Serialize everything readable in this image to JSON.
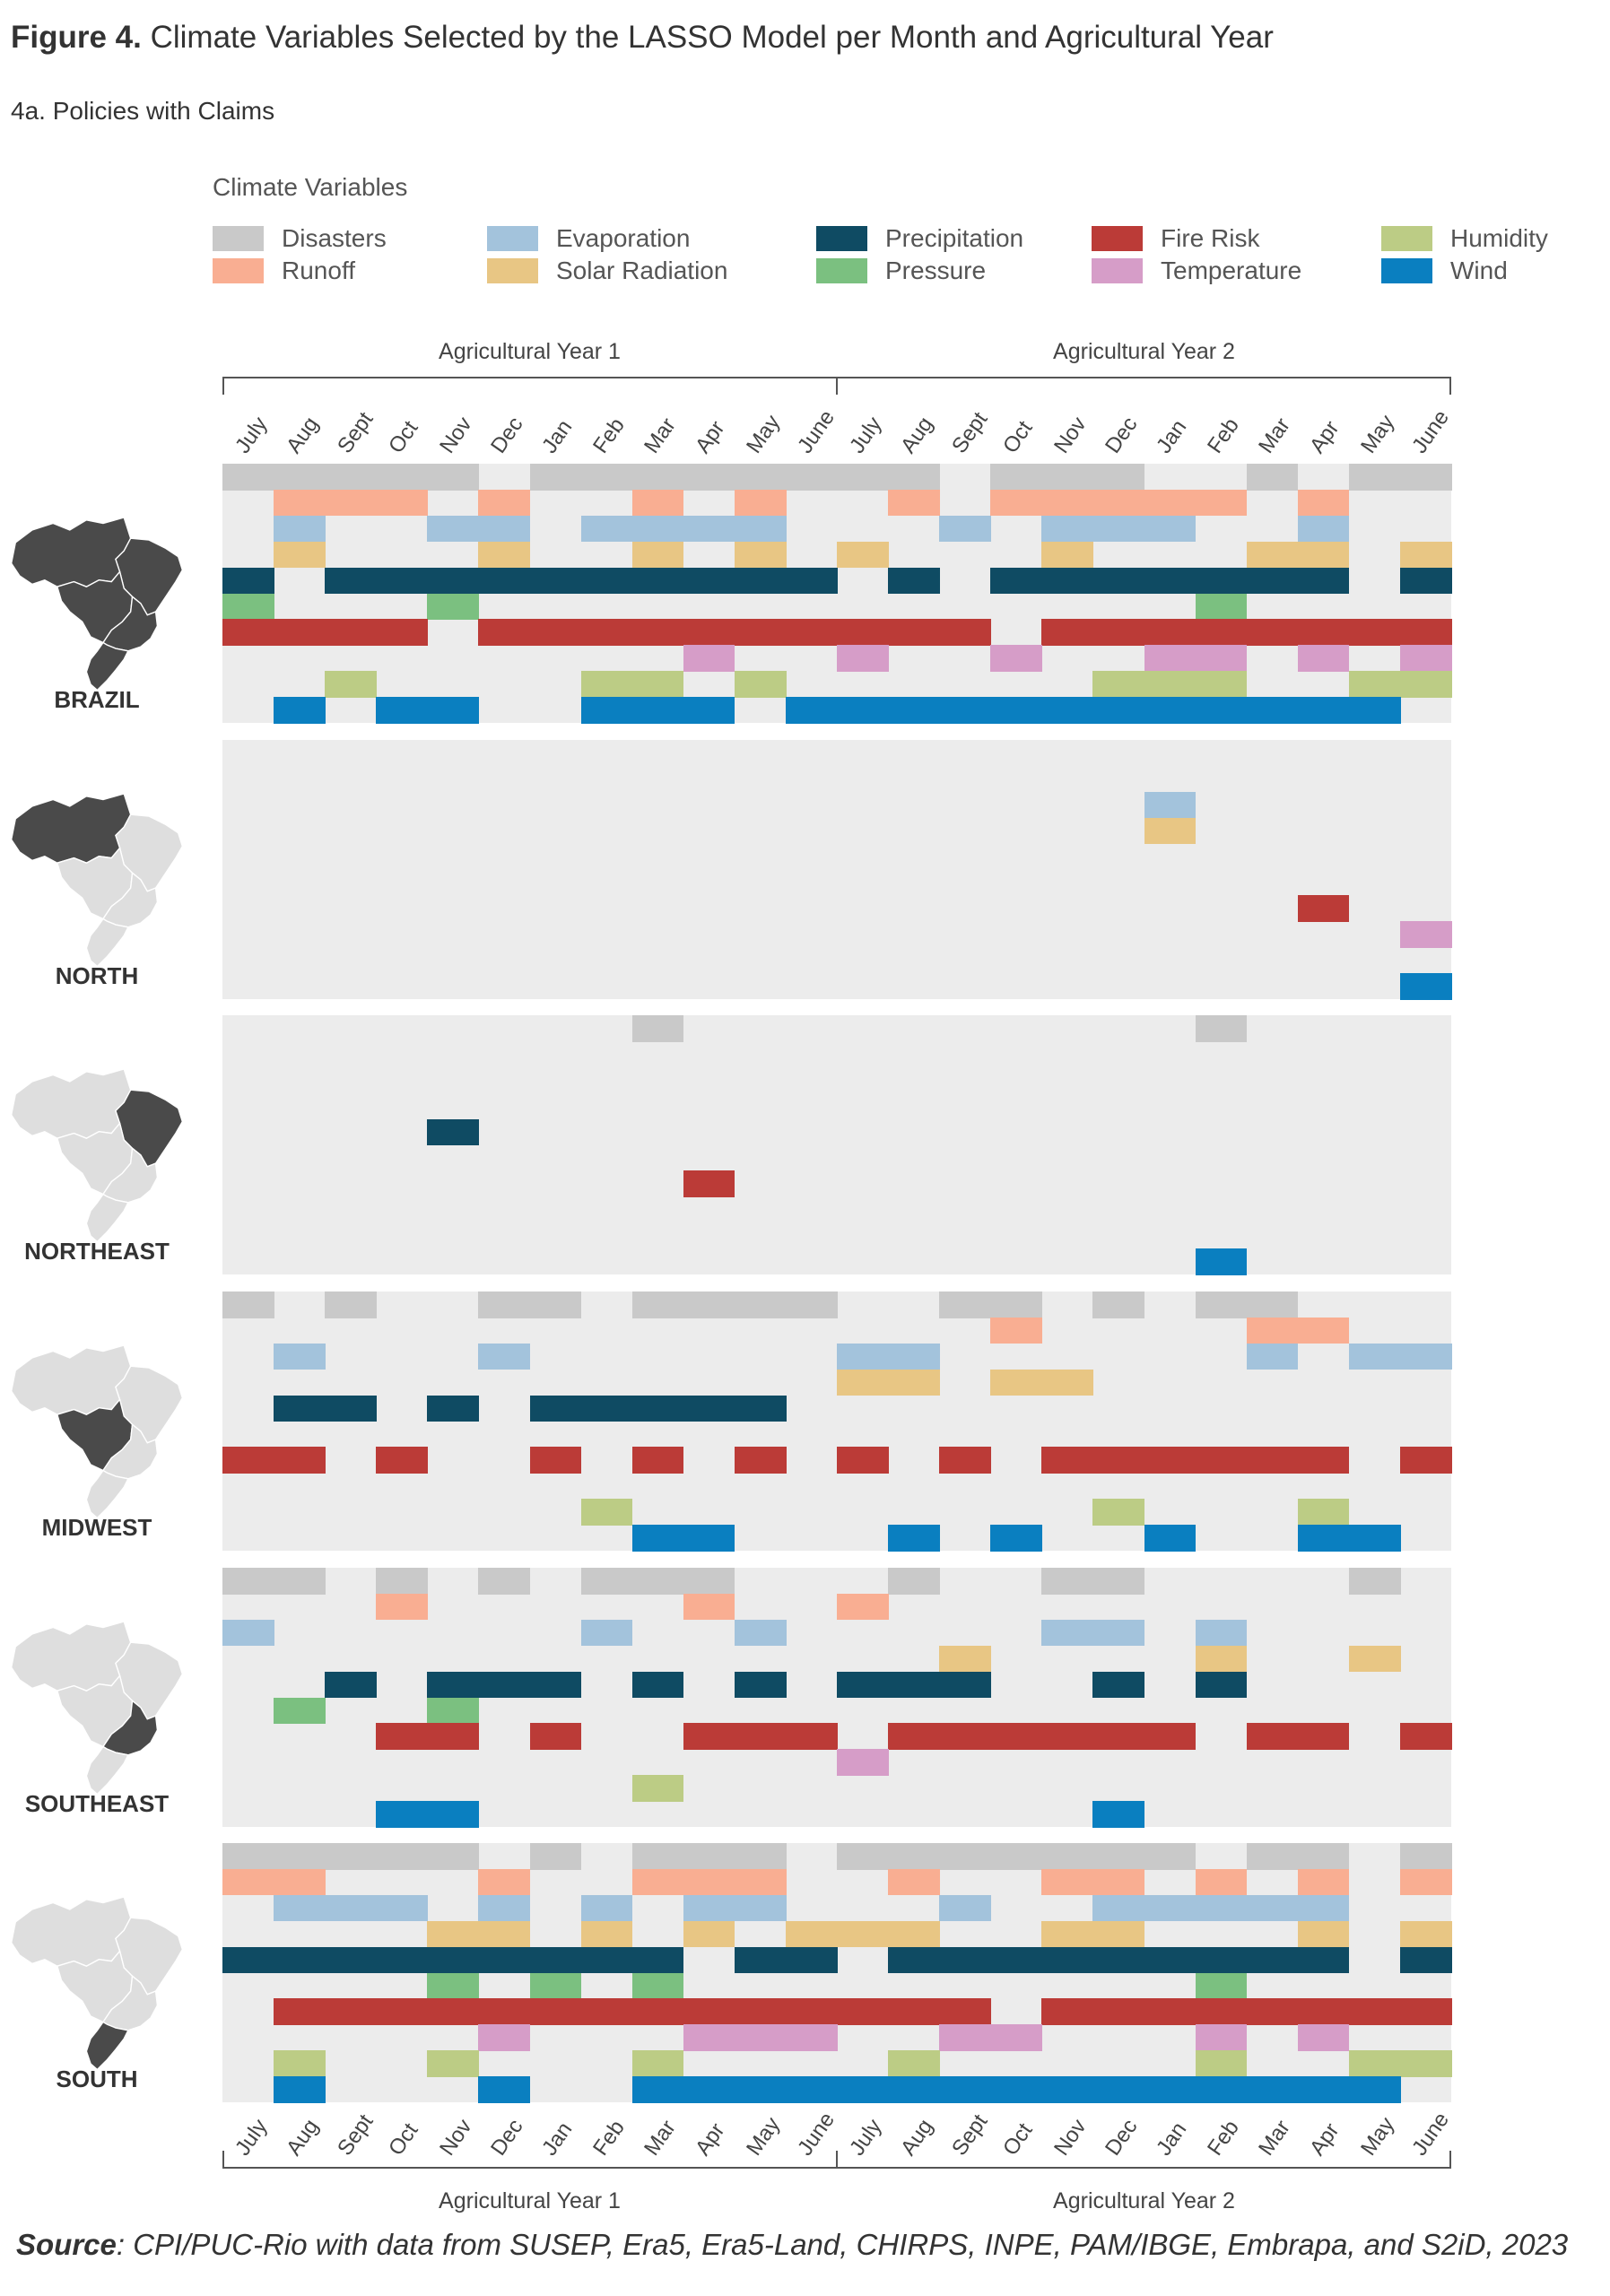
{
  "figure": {
    "label": "Figure 4.",
    "title": "Climate Variables Selected by the LASSO Model per Month and Agricultural Year",
    "subtitle": "4a. Policies with Claims",
    "source_label": "Source",
    "source_text": ": CPI/PUC-Rio with data from SUSEP, Era5, Era5-Land, CHIRPS, INPE, PAM/IBGE, Embrapa, and S2iD, 2023"
  },
  "legend": {
    "title": "Climate Variables",
    "items": [
      {
        "key": "disasters",
        "label": "Disasters",
        "color": "#c9c9c9"
      },
      {
        "key": "runoff",
        "label": "Runoff",
        "color": "#f9ae92"
      },
      {
        "key": "evaporation",
        "label": "Evaporation",
        "color": "#a3c3dc"
      },
      {
        "key": "solar",
        "label": "Solar Radiation",
        "color": "#e8c684"
      },
      {
        "key": "precipitation",
        "label": "Precipitation",
        "color": "#0f4b63"
      },
      {
        "key": "pressure",
        "label": "Pressure",
        "color": "#7bc080"
      },
      {
        "key": "fire",
        "label": "Fire Risk",
        "color": "#bb3b37"
      },
      {
        "key": "temperature",
        "label": "Temperature",
        "color": "#d69dc8"
      },
      {
        "key": "humidity",
        "label": "Humidity",
        "color": "#bccc85"
      },
      {
        "key": "wind",
        "label": "Wind",
        "color": "#0a7fc0"
      }
    ]
  },
  "chart_data": {
    "type": "heatmap",
    "x_groups": [
      "Agricultural Year 1",
      "Agricultural Year 2"
    ],
    "months": [
      "July",
      "Aug",
      "Sept",
      "Oct",
      "Nov",
      "Dec",
      "Jan",
      "Feb",
      "Mar",
      "Apr",
      "May",
      "June",
      "July",
      "Aug",
      "Sept",
      "Oct",
      "Nov",
      "Dec",
      "Jan",
      "Feb",
      "Mar",
      "Apr",
      "May",
      "June"
    ],
    "variables": [
      "disasters",
      "runoff",
      "evaporation",
      "solar",
      "precipitation",
      "pressure",
      "fire",
      "temperature",
      "humidity",
      "wind"
    ],
    "regions": [
      {
        "name": "BRAZIL",
        "map": "brazil",
        "selected": {
          "disasters": [
            0,
            1,
            2,
            3,
            4,
            6,
            7,
            8,
            9,
            10,
            11,
            12,
            13,
            15,
            16,
            17,
            20,
            22,
            23
          ],
          "runoff": [
            1,
            2,
            3,
            5,
            8,
            10,
            13,
            15,
            16,
            17,
            18,
            19,
            21
          ],
          "evaporation": [
            1,
            4,
            5,
            7,
            8,
            9,
            10,
            14,
            16,
            17,
            18,
            21
          ],
          "solar": [
            1,
            5,
            8,
            10,
            12,
            16,
            20,
            21,
            23
          ],
          "precipitation": [
            0,
            2,
            3,
            4,
            5,
            6,
            7,
            8,
            9,
            10,
            11,
            13,
            15,
            16,
            17,
            18,
            19,
            20,
            21,
            23
          ],
          "pressure": [
            0,
            4,
            19
          ],
          "fire": [
            0,
            1,
            2,
            3,
            5,
            6,
            7,
            8,
            9,
            10,
            11,
            12,
            13,
            14,
            16,
            17,
            18,
            19,
            20,
            21,
            22,
            23
          ],
          "temperature": [
            9,
            12,
            15,
            18,
            19,
            21,
            23
          ],
          "humidity": [
            2,
            7,
            8,
            10,
            17,
            18,
            19,
            22,
            23
          ],
          "wind": [
            1,
            3,
            4,
            7,
            8,
            9,
            11,
            12,
            13,
            14,
            15,
            16,
            17,
            18,
            19,
            20,
            21,
            22
          ]
        }
      },
      {
        "name": "NORTH",
        "map": "north",
        "selected": {
          "disasters": [],
          "runoff": [],
          "evaporation": [
            18
          ],
          "solar": [
            18
          ],
          "precipitation": [],
          "pressure": [],
          "fire": [
            21
          ],
          "temperature": [
            23
          ],
          "humidity": [],
          "wind": [
            23
          ]
        }
      },
      {
        "name": "NORTHEAST",
        "map": "northeast",
        "selected": {
          "disasters": [
            8,
            19
          ],
          "runoff": [],
          "evaporation": [],
          "solar": [],
          "precipitation": [
            4
          ],
          "pressure": [],
          "fire": [
            9
          ],
          "temperature": [],
          "humidity": [],
          "wind": [
            19
          ]
        }
      },
      {
        "name": "MIDWEST",
        "map": "midwest",
        "selected": {
          "disasters": [
            0,
            2,
            5,
            6,
            8,
            9,
            10,
            11,
            14,
            15,
            17,
            19,
            20
          ],
          "runoff": [
            15,
            20,
            21
          ],
          "evaporation": [
            1,
            5,
            12,
            13,
            20,
            22,
            23
          ],
          "solar": [
            12,
            13,
            15,
            16
          ],
          "precipitation": [
            1,
            2,
            4,
            6,
            7,
            8,
            9,
            10
          ],
          "pressure": [],
          "fire": [
            0,
            1,
            3,
            6,
            8,
            10,
            12,
            14,
            16,
            17,
            18,
            19,
            20,
            21,
            23
          ],
          "temperature": [],
          "humidity": [
            7,
            17,
            21
          ],
          "wind": [
            8,
            9,
            13,
            15,
            18,
            21,
            22
          ]
        }
      },
      {
        "name": "SOUTHEAST",
        "map": "southeast",
        "selected": {
          "disasters": [
            0,
            1,
            3,
            5,
            7,
            8,
            9,
            13,
            16,
            17,
            22
          ],
          "runoff": [
            3,
            9,
            12
          ],
          "evaporation": [
            0,
            7,
            10,
            16,
            17,
            19
          ],
          "solar": [
            14,
            19,
            22
          ],
          "precipitation": [
            2,
            4,
            5,
            6,
            8,
            10,
            12,
            13,
            14,
            17,
            19
          ],
          "pressure": [
            1,
            4
          ],
          "fire": [
            3,
            4,
            6,
            9,
            10,
            11,
            13,
            14,
            15,
            16,
            17,
            18,
            20,
            21,
            23
          ],
          "temperature": [
            12
          ],
          "humidity": [
            8
          ],
          "wind": [
            3,
            4,
            17
          ]
        }
      },
      {
        "name": "SOUTH",
        "map": "south",
        "selected": {
          "disasters": [
            0,
            1,
            2,
            3,
            4,
            6,
            8,
            9,
            10,
            12,
            13,
            14,
            15,
            16,
            17,
            18,
            20,
            21,
            23
          ],
          "runoff": [
            0,
            1,
            5,
            8,
            9,
            10,
            13,
            16,
            17,
            19,
            21,
            23
          ],
          "evaporation": [
            1,
            2,
            3,
            5,
            7,
            9,
            10,
            14,
            17,
            18,
            19,
            20,
            21
          ],
          "solar": [
            4,
            5,
            7,
            9,
            11,
            12,
            13,
            16,
            17,
            21,
            23
          ],
          "precipitation": [
            0,
            1,
            2,
            3,
            4,
            5,
            6,
            7,
            8,
            10,
            11,
            13,
            14,
            15,
            16,
            17,
            18,
            19,
            20,
            21,
            23
          ],
          "pressure": [
            4,
            6,
            8,
            19
          ],
          "fire": [
            1,
            2,
            3,
            4,
            5,
            6,
            7,
            8,
            9,
            10,
            11,
            12,
            13,
            14,
            16,
            17,
            18,
            19,
            20,
            21,
            22,
            23
          ],
          "temperature": [
            5,
            9,
            10,
            11,
            14,
            15,
            19,
            21
          ],
          "humidity": [
            1,
            4,
            8,
            13,
            19,
            22,
            23
          ],
          "wind": [
            1,
            5,
            8,
            9,
            10,
            11,
            12,
            13,
            14,
            15,
            16,
            17,
            18,
            19,
            20,
            21,
            22
          ]
        }
      }
    ]
  }
}
